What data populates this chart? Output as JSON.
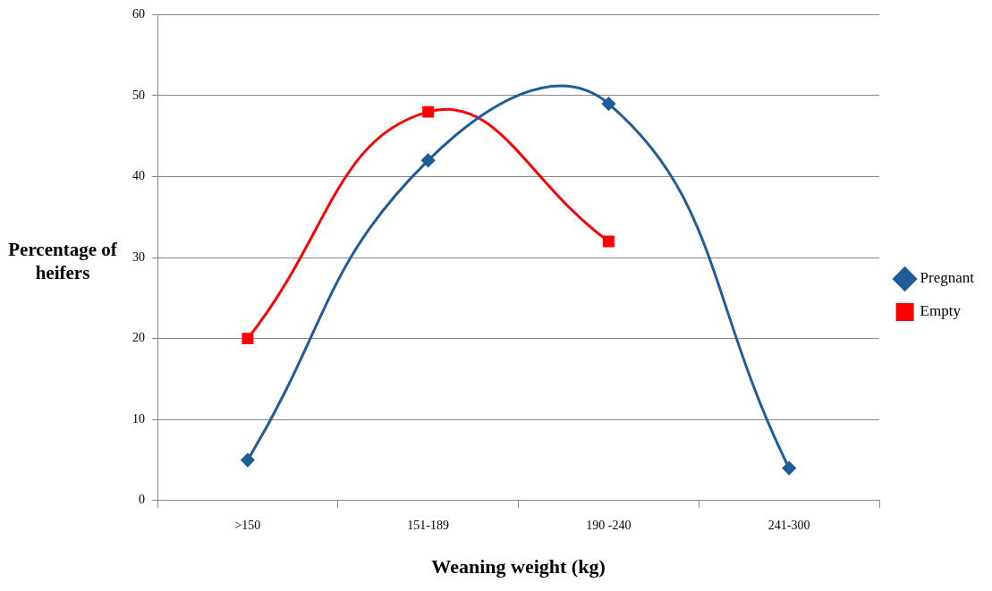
{
  "chart_data": {
    "type": "line",
    "xlabel": "Weaning weight (kg)",
    "ylabel": "Percentage of heifers",
    "categories": [
      ">150",
      "151-189",
      "190 -240",
      "241-300"
    ],
    "series": [
      {
        "name": "Pregnant",
        "color": "#1f5c99",
        "marker": "diamond",
        "values": [
          5,
          42,
          49,
          4
        ]
      },
      {
        "name": "Empty",
        "color": "#ff0000",
        "marker": "square",
        "values": [
          20,
          48,
          32,
          null
        ]
      }
    ],
    "ylim": [
      0,
      60
    ],
    "yticks": [
      0,
      10,
      20,
      30,
      40,
      50,
      60
    ],
    "grid": "y",
    "legend": "right"
  }
}
